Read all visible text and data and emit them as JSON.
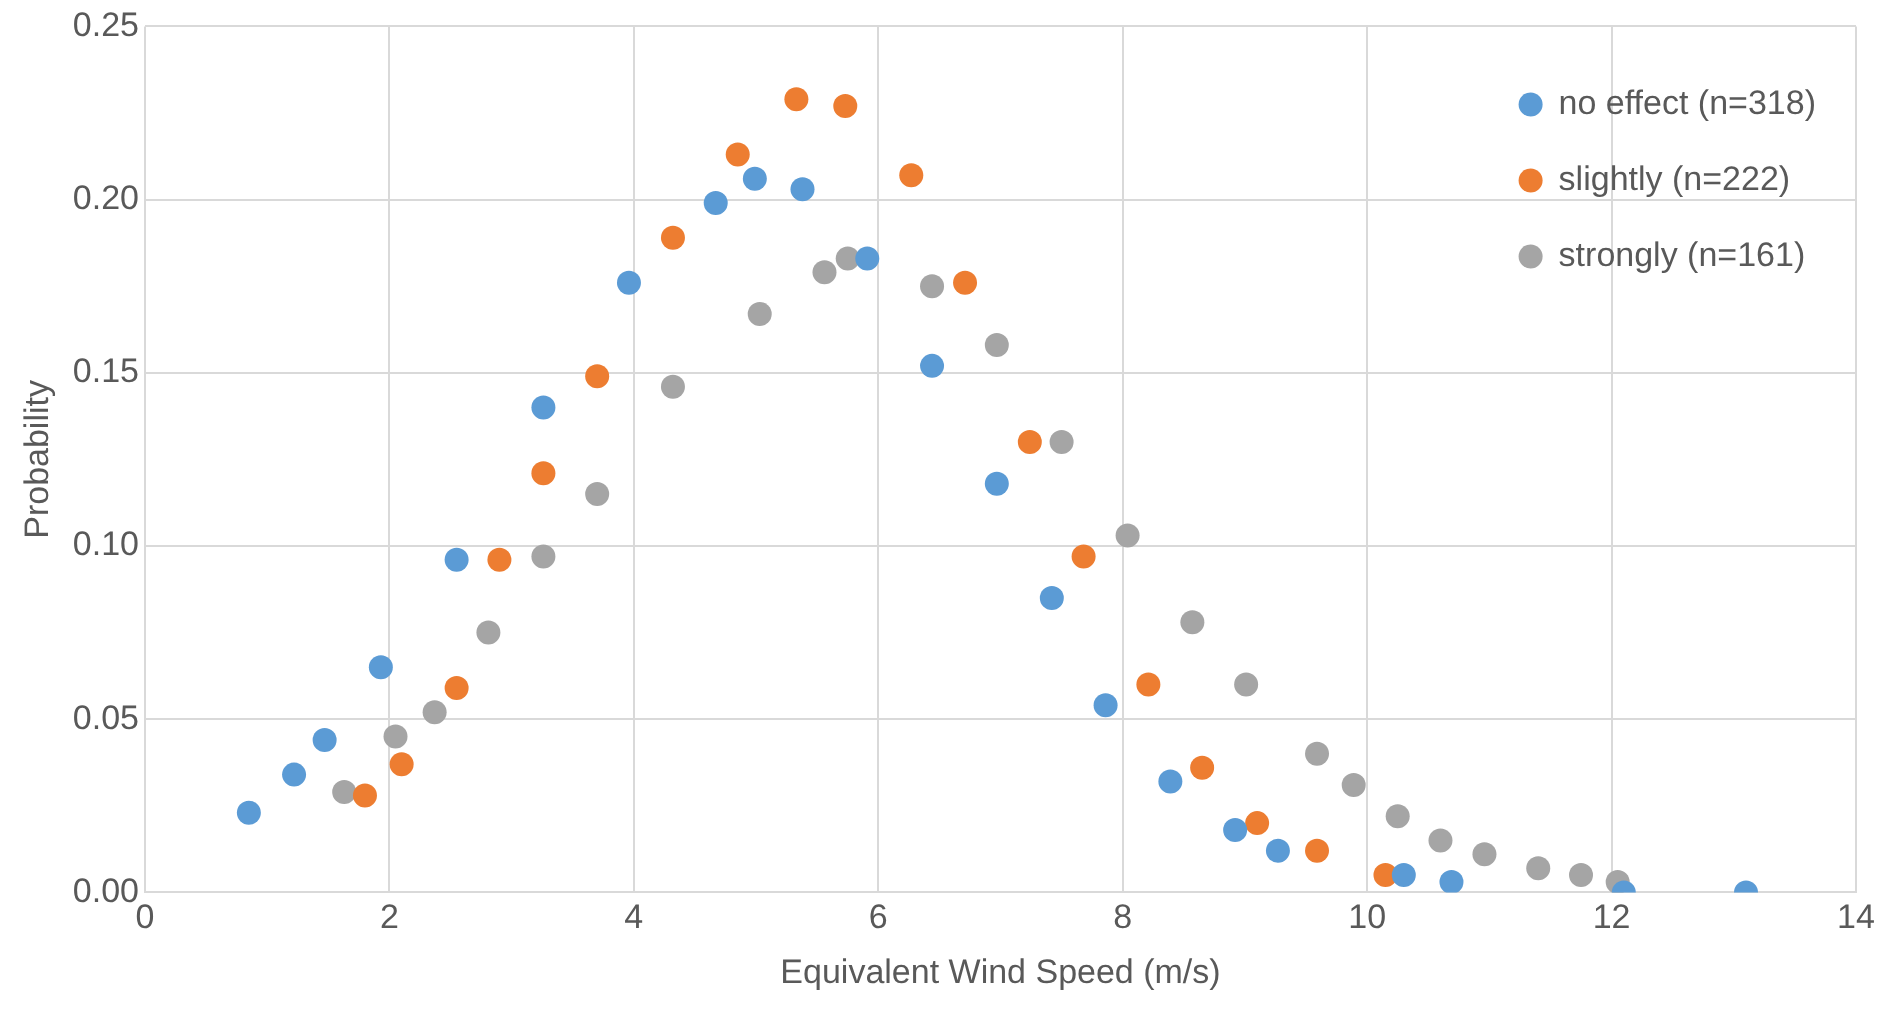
{
  "chart_data": {
    "type": "scatter",
    "xlabel": "Equivalent Wind Speed (m/s)",
    "ylabel": "Probability",
    "xlim": [
      0,
      14
    ],
    "xticks": [
      0,
      2,
      4,
      6,
      8,
      10,
      12,
      14
    ],
    "ylim": [
      0,
      0.25
    ],
    "yticks": [
      {
        "value": 0,
        "label": "0.00"
      },
      {
        "value": 0.05,
        "label": "0.05"
      },
      {
        "value": 0.1,
        "label": "0.10"
      },
      {
        "value": 0.15,
        "label": "0.15"
      },
      {
        "value": 0.2,
        "label": "0.20"
      },
      {
        "value": 0.25,
        "label": "0.25"
      }
    ],
    "grid": true,
    "legend": "top right",
    "marker": "circle",
    "series": [
      {
        "name": "no effect (n=318)",
        "color": "#5b9bd5",
        "x": [
          0.85,
          1.22,
          1.47,
          1.93,
          2.55,
          3.26,
          3.96,
          4.67,
          4.99,
          5.38,
          5.91,
          6.44,
          6.97,
          7.42,
          7.86,
          8.39,
          8.92,
          9.27,
          10.3,
          10.69,
          12.1,
          13.1
        ],
        "values": [
          0.023,
          0.034,
          0.044,
          0.065,
          0.096,
          0.14,
          0.176,
          0.199,
          0.206,
          0.203,
          0.183,
          0.152,
          0.118,
          0.085,
          0.054,
          0.032,
          0.018,
          0.012,
          0.005,
          0.003,
          0,
          0
        ]
      },
      {
        "name": "slightly (n=222)",
        "color": "#ed7d31",
        "x": [
          1.8,
          2.1,
          2.55,
          2.9,
          3.26,
          3.7,
          4.32,
          4.85,
          5.33,
          5.73,
          6.27,
          6.71,
          7.24,
          7.68,
          8.21,
          8.65,
          9.1,
          9.59,
          10.15
        ],
        "values": [
          0.028,
          0.037,
          0.059,
          0.096,
          0.121,
          0.149,
          0.189,
          0.213,
          0.229,
          0.227,
          0.207,
          0.176,
          0.13,
          0.097,
          0.06,
          0.036,
          0.02,
          0.012,
          0.005
        ]
      },
      {
        "name": "strongly (n=161)",
        "color": "#a5a5a5",
        "x": [
          1.63,
          2.05,
          2.37,
          2.81,
          3.26,
          3.7,
          4.32,
          5.03,
          5.56,
          5.75,
          6.44,
          6.97,
          7.5,
          8.04,
          8.57,
          9.01,
          9.59,
          9.89,
          10.25,
          10.6,
          10.96,
          11.4,
          11.75,
          12.05
        ],
        "values": [
          0.029,
          0.045,
          0.052,
          0.075,
          0.097,
          0.115,
          0.146,
          0.167,
          0.179,
          0.183,
          0.175,
          0.158,
          0.13,
          0.103,
          0.078,
          0.06,
          0.04,
          0.031,
          0.022,
          0.015,
          0.011,
          0.007,
          0.005,
          0.003
        ]
      }
    ]
  }
}
